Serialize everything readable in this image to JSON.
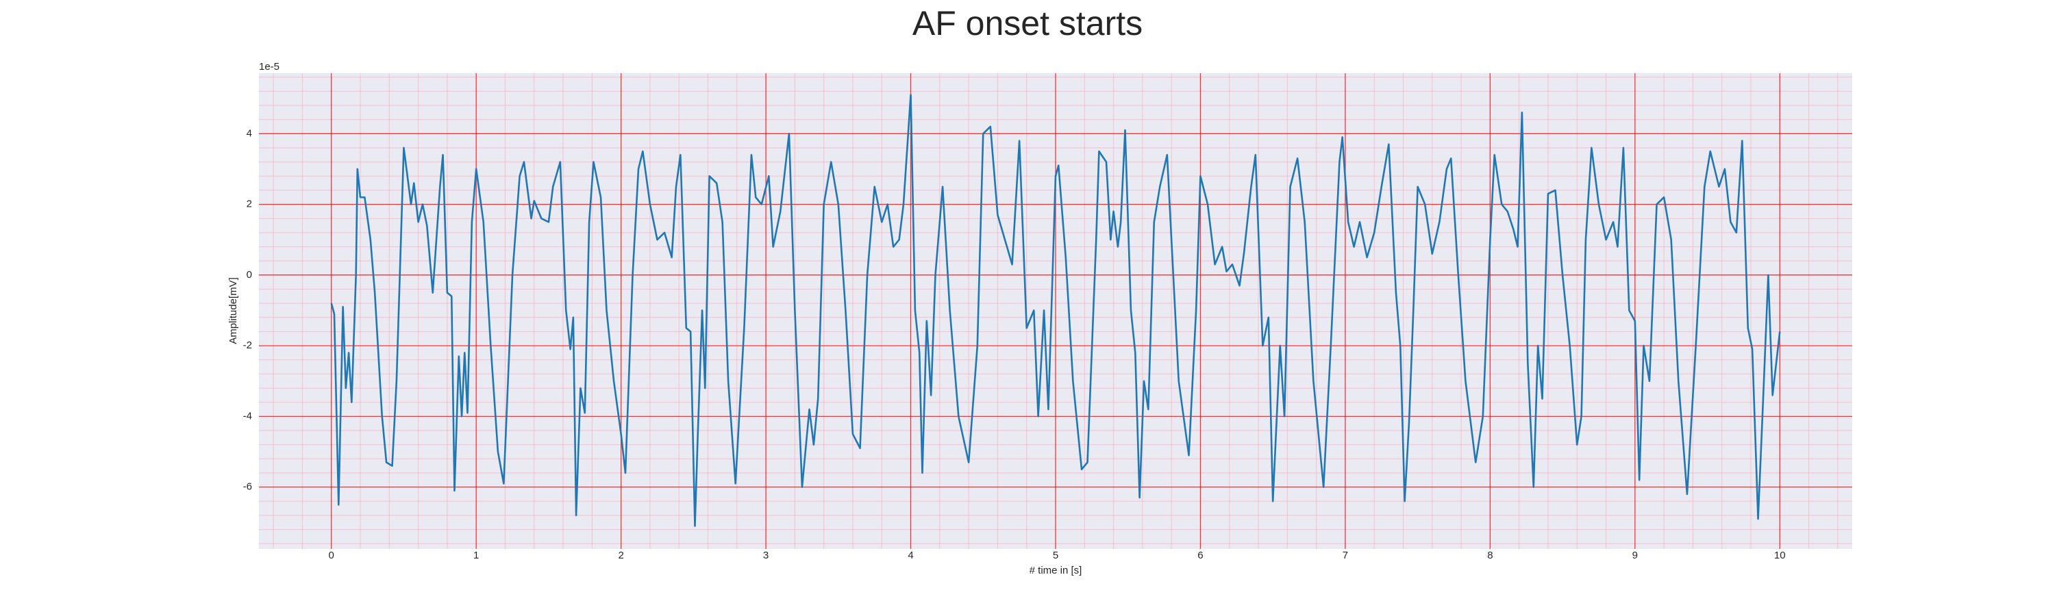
{
  "chart_data": {
    "type": "line",
    "title": "AF onset starts",
    "xlabel": "# time in [s]",
    "ylabel": "Amplitude[mV]",
    "y_offset_label": "1e-5",
    "xlim": [
      -0.5,
      10.5
    ],
    "ylim": [
      -7.75,
      5.71
    ],
    "xticks": [
      0,
      1,
      2,
      3,
      4,
      5,
      6,
      7,
      8,
      9,
      10
    ],
    "yticks": [
      -6,
      -4,
      -2,
      0,
      2,
      4
    ],
    "grid": true,
    "minor_grid": true,
    "grid_color": "#ff0000",
    "minor_grid_color": "#ff9db0",
    "background": "#eaeaf2",
    "x": [
      0,
      0.02,
      0.05,
      0.08,
      0.1,
      0.12,
      0.14,
      0.17,
      0.18,
      0.2,
      0.23,
      0.27,
      0.3,
      0.35,
      0.38,
      0.42,
      0.45,
      0.5,
      0.55,
      0.57,
      0.6,
      0.63,
      0.66,
      0.7,
      0.75,
      0.77,
      0.8,
      0.83,
      0.85,
      0.88,
      0.9,
      0.92,
      0.94,
      0.97,
      1.0,
      1.05,
      1.1,
      1.15,
      1.19,
      1.25,
      1.3,
      1.33,
      1.38,
      1.4,
      1.45,
      1.5,
      1.53,
      1.58,
      1.62,
      1.65,
      1.67,
      1.69,
      1.72,
      1.75,
      1.78,
      1.81,
      1.86,
      1.9,
      1.95,
      2.0,
      2.03,
      2.08,
      2.12,
      2.15,
      2.2,
      2.25,
      2.3,
      2.35,
      2.38,
      2.41,
      2.45,
      2.48,
      2.51,
      2.53,
      2.56,
      2.58,
      2.61,
      2.66,
      2.7,
      2.74,
      2.79,
      2.85,
      2.9,
      2.93,
      2.97,
      3.02,
      3.05,
      3.1,
      3.16,
      3.2,
      3.25,
      3.3,
      3.33,
      3.36,
      3.4,
      3.45,
      3.5,
      3.55,
      3.6,
      3.65,
      3.7,
      3.75,
      3.8,
      3.84,
      3.88,
      3.92,
      3.95,
      4.0,
      4.03,
      4.06,
      4.08,
      4.11,
      4.14,
      4.17,
      4.22,
      4.27,
      4.33,
      4.4,
      4.46,
      4.5,
      4.55,
      4.6,
      4.65,
      4.7,
      4.75,
      4.8,
      4.85,
      4.88,
      4.92,
      4.95,
      5.0,
      5.02,
      5.07,
      5.12,
      5.18,
      5.22,
      5.28,
      5.3,
      5.35,
      5.38,
      5.4,
      5.43,
      5.45,
      5.48,
      5.52,
      5.55,
      5.58,
      5.61,
      5.64,
      5.68,
      5.72,
      5.77,
      5.8,
      5.85,
      5.92,
      5.97,
      6.0,
      6.05,
      6.1,
      6.15,
      6.18,
      6.22,
      6.27,
      6.3,
      6.35,
      6.38,
      6.43,
      6.47,
      6.5,
      6.55,
      6.58,
      6.62,
      6.67,
      6.72,
      6.78,
      6.85,
      6.9,
      6.96,
      6.98,
      7.02,
      7.06,
      7.1,
      7.15,
      7.2,
      7.25,
      7.3,
      7.35,
      7.38,
      7.41,
      7.44,
      7.47,
      7.5,
      7.55,
      7.6,
      7.65,
      7.7,
      7.73,
      7.78,
      7.83,
      7.9,
      7.95,
      8.0,
      8.03,
      8.08,
      8.12,
      8.16,
      8.19,
      8.22,
      8.26,
      8.3,
      8.33,
      8.36,
      8.4,
      8.45,
      8.5,
      8.55,
      8.6,
      8.63,
      8.66,
      8.7,
      8.75,
      8.8,
      8.85,
      8.88,
      8.92,
      8.96,
      9.0,
      9.03,
      9.06,
      9.1,
      9.15,
      9.2,
      9.25,
      9.3,
      9.36,
      9.42,
      9.48,
      9.52,
      9.55,
      9.58,
      9.62,
      9.66,
      9.7,
      9.74,
      9.78,
      9.81,
      9.85,
      9.88,
      9.92,
      9.95,
      10.0
    ],
    "series": [
      {
        "color": "#1f77b4",
        "values": [
          -0.8,
          -1.1,
          -6.5,
          -0.9,
          -3.2,
          -2.2,
          -3.6,
          0,
          3.0,
          2.2,
          2.2,
          1.0,
          -0.5,
          -4,
          -5.3,
          -5.4,
          -3,
          3.6,
          2.0,
          2.6,
          1.5,
          2.0,
          1.4,
          -0.5,
          2.5,
          3.4,
          -0.5,
          -0.6,
          -6.1,
          -2.3,
          -4.0,
          -2.2,
          -3.9,
          1.5,
          3.0,
          1.5,
          -2,
          -5.0,
          -5.9,
          0,
          2.8,
          3.2,
          1.6,
          2.1,
          1.6,
          1.5,
          2.5,
          3.2,
          -1,
          -2.1,
          -1.2,
          -6.8,
          -3.2,
          -3.9,
          1.5,
          3.2,
          2.2,
          -1,
          -3,
          -4.5,
          -5.6,
          0,
          3,
          3.5,
          2.0,
          1.0,
          1.2,
          0.5,
          2.5,
          3.4,
          -1.5,
          -1.6,
          -7.1,
          -4.5,
          -1,
          -3.2,
          2.8,
          2.6,
          1.5,
          -3,
          -5.9,
          -1.5,
          3.4,
          2.2,
          2.0,
          2.8,
          0.8,
          1.8,
          4.0,
          -1,
          -6.0,
          -3.8,
          -4.8,
          -3.5,
          2,
          3.2,
          2.0,
          -1,
          -4.5,
          -4.9,
          0,
          2.5,
          1.5,
          2.0,
          0.8,
          1.0,
          2,
          5.1,
          -1,
          -2.2,
          -5.6,
          -1.3,
          -3.4,
          0,
          2.5,
          -1,
          -4,
          -5.3,
          -2,
          4.0,
          4.2,
          1.7,
          1.0,
          0.3,
          3.8,
          -1.5,
          -1.0,
          -4.0,
          -1,
          -3.8,
          2.8,
          3.1,
          0.5,
          -3,
          -5.5,
          -5.3,
          1,
          3.5,
          3.2,
          1.0,
          1.8,
          0.8,
          1.5,
          4.1,
          -1,
          -2.2,
          -6.3,
          -3,
          -3.8,
          1.5,
          2.5,
          3.4,
          1,
          -3,
          -5.1,
          -1,
          2.8,
          2.0,
          0.3,
          0.8,
          0.1,
          0.3,
          -0.3,
          0.6,
          2.5,
          3.4,
          -2.0,
          -1.2,
          -6.4,
          -2,
          -4,
          2.5,
          3.3,
          1.5,
          -3,
          -6.0,
          -2,
          3.2,
          3.9,
          1.5,
          0.8,
          1.5,
          0.5,
          1.2,
          2.5,
          3.7,
          -0.5,
          -2,
          -6.4,
          -4.2,
          -1,
          2.5,
          2.0,
          0.6,
          1.5,
          3.0,
          3.3,
          0,
          -3,
          -5.3,
          -4,
          1,
          3.4,
          2.0,
          1.8,
          1.3,
          0.8,
          4.6,
          -2.5,
          -6.0,
          -2,
          -3.5,
          2.3,
          2.4,
          0,
          -2,
          -4.8,
          -4,
          1,
          3.6,
          2.0,
          1.0,
          1.5,
          0.8,
          3.6,
          -1,
          -1.3,
          -5.8,
          -2,
          -3,
          2.0,
          2.2,
          1.0,
          -3,
          -6.2,
          -2,
          2.5,
          3.5,
          3.0,
          2.5,
          3.0,
          1.5,
          1.2,
          3.8,
          -1.5,
          -2.1,
          -6.9,
          -4,
          0,
          -3.4,
          -1.6
        ]
      }
    ]
  }
}
